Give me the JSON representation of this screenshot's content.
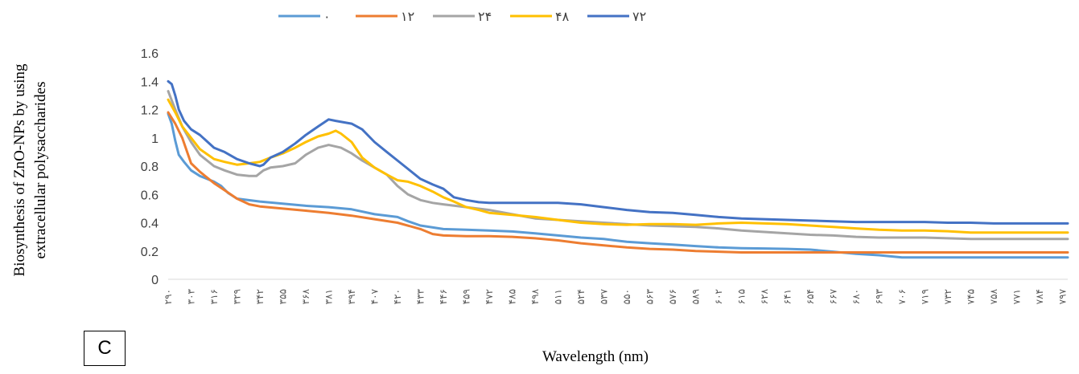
{
  "chart_data": {
    "type": "line",
    "title": "",
    "xlabel": "Wavelength (nm)",
    "ylabel": [
      "Biosynthesis of ZnO-NPs  by using",
      "extracellular polysaccharides"
    ],
    "panel_label": "C",
    "ylim": [
      0,
      1.6
    ],
    "yticks": [
      "0",
      "0.2",
      "0.4",
      "0.6",
      "0.8",
      "1",
      "1.2",
      "1.4",
      "1.6"
    ],
    "grid": false,
    "legend_position": "top",
    "xlim": [
      290,
      800
    ],
    "x_tick_values": [
      290,
      303,
      316,
      329,
      342,
      355,
      368,
      381,
      394,
      407,
      420,
      433,
      446,
      459,
      472,
      485,
      498,
      511,
      524,
      537,
      550,
      563,
      576,
      589,
      602,
      615,
      628,
      641,
      654,
      667,
      680,
      693,
      706,
      719,
      732,
      745,
      758,
      771,
      784,
      797
    ],
    "x_tick_labels": [
      "۲۹۰",
      "۳۰۳",
      "۳۱۶",
      "۳۲۹",
      "۳۴۲",
      "۳۵۵",
      "۳۶۸",
      "۳۸۱",
      "۳۹۴",
      "۴۰۷",
      "۴۲۰",
      "۴۳۳",
      "۴۴۶",
      "۴۵۹",
      "۴۷۲",
      "۴۸۵",
      "۴۹۸",
      "۵۱۱",
      "۵۲۴",
      "۵۳۷",
      "۵۵۰",
      "۵۶۳",
      "۵۷۶",
      "۵۸۹",
      "۶۰۲",
      "۶۱۵",
      "۶۲۸",
      "۶۴۱",
      "۶۵۴",
      "۶۶۷",
      "۶۸۰",
      "۶۹۳",
      "۷۰۶",
      "۷۱۹",
      "۷۳۲",
      "۷۴۵",
      "۷۵۸",
      "۷۷۱",
      "۷۸۴",
      "۷۹۷"
    ],
    "series": [
      {
        "name": "۰",
        "color": "#5B9BD5",
        "points": [
          [
            290,
            1.17
          ],
          [
            292,
            1.1
          ],
          [
            294,
            0.98
          ],
          [
            296,
            0.88
          ],
          [
            299,
            0.83
          ],
          [
            303,
            0.77
          ],
          [
            308,
            0.73
          ],
          [
            316,
            0.69
          ],
          [
            320,
            0.66
          ],
          [
            324,
            0.61
          ],
          [
            329,
            0.57
          ],
          [
            342,
            0.55
          ],
          [
            355,
            0.535
          ],
          [
            368,
            0.52
          ],
          [
            381,
            0.51
          ],
          [
            394,
            0.495
          ],
          [
            407,
            0.46
          ],
          [
            420,
            0.44
          ],
          [
            426,
            0.41
          ],
          [
            433,
            0.38
          ],
          [
            446,
            0.355
          ],
          [
            459,
            0.35
          ],
          [
            472,
            0.345
          ],
          [
            485,
            0.338
          ],
          [
            498,
            0.325
          ],
          [
            511,
            0.31
          ],
          [
            524,
            0.295
          ],
          [
            537,
            0.285
          ],
          [
            550,
            0.265
          ],
          [
            563,
            0.255
          ],
          [
            576,
            0.245
          ],
          [
            589,
            0.235
          ],
          [
            602,
            0.225
          ],
          [
            615,
            0.22
          ],
          [
            628,
            0.218
          ],
          [
            641,
            0.215
          ],
          [
            654,
            0.21
          ],
          [
            667,
            0.195
          ],
          [
            680,
            0.18
          ],
          [
            693,
            0.17
          ],
          [
            706,
            0.155
          ],
          [
            719,
            0.155
          ],
          [
            732,
            0.155
          ],
          [
            745,
            0.155
          ],
          [
            758,
            0.155
          ],
          [
            771,
            0.155
          ],
          [
            784,
            0.155
          ],
          [
            797,
            0.155
          ],
          [
            800,
            0.155
          ]
        ]
      },
      {
        "name": "۱۲",
        "color": "#ED7D31",
        "points": [
          [
            290,
            1.18
          ],
          [
            294,
            1.1
          ],
          [
            298,
            1.0
          ],
          [
            303,
            0.82
          ],
          [
            308,
            0.76
          ],
          [
            316,
            0.68
          ],
          [
            322,
            0.63
          ],
          [
            329,
            0.57
          ],
          [
            336,
            0.53
          ],
          [
            342,
            0.515
          ],
          [
            355,
            0.5
          ],
          [
            368,
            0.485
          ],
          [
            381,
            0.47
          ],
          [
            394,
            0.45
          ],
          [
            407,
            0.425
          ],
          [
            420,
            0.4
          ],
          [
            433,
            0.355
          ],
          [
            440,
            0.32
          ],
          [
            446,
            0.31
          ],
          [
            459,
            0.305
          ],
          [
            472,
            0.305
          ],
          [
            485,
            0.3
          ],
          [
            498,
            0.29
          ],
          [
            511,
            0.275
          ],
          [
            524,
            0.255
          ],
          [
            537,
            0.24
          ],
          [
            550,
            0.225
          ],
          [
            563,
            0.215
          ],
          [
            576,
            0.21
          ],
          [
            589,
            0.2
          ],
          [
            602,
            0.195
          ],
          [
            615,
            0.19
          ],
          [
            628,
            0.19
          ],
          [
            641,
            0.19
          ],
          [
            654,
            0.19
          ],
          [
            667,
            0.19
          ],
          [
            680,
            0.19
          ],
          [
            693,
            0.19
          ],
          [
            706,
            0.19
          ],
          [
            719,
            0.19
          ],
          [
            732,
            0.19
          ],
          [
            745,
            0.19
          ],
          [
            758,
            0.19
          ],
          [
            771,
            0.19
          ],
          [
            784,
            0.19
          ],
          [
            797,
            0.19
          ],
          [
            800,
            0.19
          ]
        ]
      },
      {
        "name": "۲۴",
        "color": "#A5A5A5",
        "points": [
          [
            290,
            1.33
          ],
          [
            294,
            1.2
          ],
          [
            298,
            1.08
          ],
          [
            303,
            0.97
          ],
          [
            308,
            0.88
          ],
          [
            316,
            0.8
          ],
          [
            322,
            0.77
          ],
          [
            329,
            0.74
          ],
          [
            336,
            0.73
          ],
          [
            340,
            0.73
          ],
          [
            344,
            0.77
          ],
          [
            348,
            0.79
          ],
          [
            355,
            0.8
          ],
          [
            362,
            0.82
          ],
          [
            368,
            0.88
          ],
          [
            375,
            0.93
          ],
          [
            381,
            0.95
          ],
          [
            388,
            0.93
          ],
          [
            394,
            0.89
          ],
          [
            400,
            0.84
          ],
          [
            407,
            0.79
          ],
          [
            414,
            0.74
          ],
          [
            420,
            0.66
          ],
          [
            426,
            0.6
          ],
          [
            433,
            0.56
          ],
          [
            440,
            0.54
          ],
          [
            446,
            0.53
          ],
          [
            459,
            0.51
          ],
          [
            472,
            0.49
          ],
          [
            485,
            0.46
          ],
          [
            498,
            0.43
          ],
          [
            511,
            0.42
          ],
          [
            524,
            0.41
          ],
          [
            537,
            0.4
          ],
          [
            550,
            0.39
          ],
          [
            563,
            0.38
          ],
          [
            576,
            0.375
          ],
          [
            589,
            0.37
          ],
          [
            602,
            0.36
          ],
          [
            615,
            0.345
          ],
          [
            628,
            0.335
          ],
          [
            641,
            0.325
          ],
          [
            654,
            0.315
          ],
          [
            667,
            0.31
          ],
          [
            680,
            0.3
          ],
          [
            693,
            0.295
          ],
          [
            706,
            0.295
          ],
          [
            719,
            0.295
          ],
          [
            732,
            0.29
          ],
          [
            745,
            0.285
          ],
          [
            758,
            0.285
          ],
          [
            771,
            0.285
          ],
          [
            784,
            0.285
          ],
          [
            797,
            0.285
          ],
          [
            800,
            0.285
          ]
        ]
      },
      {
        "name": "۴۸",
        "color": "#FFC000",
        "points": [
          [
            290,
            1.27
          ],
          [
            294,
            1.18
          ],
          [
            298,
            1.08
          ],
          [
            303,
            1.0
          ],
          [
            308,
            0.92
          ],
          [
            316,
            0.85
          ],
          [
            322,
            0.83
          ],
          [
            329,
            0.81
          ],
          [
            336,
            0.82
          ],
          [
            342,
            0.83
          ],
          [
            348,
            0.86
          ],
          [
            355,
            0.89
          ],
          [
            362,
            0.93
          ],
          [
            368,
            0.97
          ],
          [
            375,
            1.01
          ],
          [
            381,
            1.03
          ],
          [
            385,
            1.05
          ],
          [
            388,
            1.03
          ],
          [
            394,
            0.97
          ],
          [
            400,
            0.86
          ],
          [
            407,
            0.79
          ],
          [
            414,
            0.74
          ],
          [
            420,
            0.7
          ],
          [
            426,
            0.69
          ],
          [
            433,
            0.66
          ],
          [
            440,
            0.62
          ],
          [
            446,
            0.58
          ],
          [
            452,
            0.55
          ],
          [
            459,
            0.51
          ],
          [
            466,
            0.49
          ],
          [
            472,
            0.47
          ],
          [
            485,
            0.455
          ],
          [
            498,
            0.44
          ],
          [
            511,
            0.42
          ],
          [
            524,
            0.4
          ],
          [
            537,
            0.39
          ],
          [
            550,
            0.385
          ],
          [
            563,
            0.39
          ],
          [
            576,
            0.39
          ],
          [
            589,
            0.385
          ],
          [
            602,
            0.395
          ],
          [
            615,
            0.4
          ],
          [
            628,
            0.395
          ],
          [
            641,
            0.39
          ],
          [
            654,
            0.38
          ],
          [
            667,
            0.37
          ],
          [
            680,
            0.36
          ],
          [
            693,
            0.35
          ],
          [
            706,
            0.345
          ],
          [
            719,
            0.345
          ],
          [
            732,
            0.34
          ],
          [
            745,
            0.33
          ],
          [
            758,
            0.33
          ],
          [
            771,
            0.33
          ],
          [
            784,
            0.33
          ],
          [
            797,
            0.33
          ],
          [
            800,
            0.33
          ]
        ]
      },
      {
        "name": "۷۲",
        "color": "#4472C4",
        "points": [
          [
            290,
            1.4
          ],
          [
            292,
            1.38
          ],
          [
            294,
            1.3
          ],
          [
            296,
            1.2
          ],
          [
            299,
            1.12
          ],
          [
            303,
            1.06
          ],
          [
            308,
            1.02
          ],
          [
            316,
            0.93
          ],
          [
            322,
            0.9
          ],
          [
            329,
            0.85
          ],
          [
            336,
            0.82
          ],
          [
            342,
            0.8
          ],
          [
            344,
            0.81
          ],
          [
            348,
            0.86
          ],
          [
            355,
            0.9
          ],
          [
            362,
            0.96
          ],
          [
            368,
            1.02
          ],
          [
            375,
            1.08
          ],
          [
            381,
            1.13
          ],
          [
            385,
            1.12
          ],
          [
            394,
            1.1
          ],
          [
            400,
            1.06
          ],
          [
            407,
            0.97
          ],
          [
            414,
            0.9
          ],
          [
            420,
            0.84
          ],
          [
            426,
            0.78
          ],
          [
            433,
            0.71
          ],
          [
            440,
            0.67
          ],
          [
            446,
            0.64
          ],
          [
            452,
            0.58
          ],
          [
            459,
            0.56
          ],
          [
            466,
            0.545
          ],
          [
            472,
            0.54
          ],
          [
            485,
            0.54
          ],
          [
            498,
            0.54
          ],
          [
            511,
            0.54
          ],
          [
            524,
            0.53
          ],
          [
            537,
            0.51
          ],
          [
            550,
            0.49
          ],
          [
            563,
            0.475
          ],
          [
            576,
            0.47
          ],
          [
            589,
            0.455
          ],
          [
            602,
            0.44
          ],
          [
            615,
            0.43
          ],
          [
            628,
            0.425
          ],
          [
            641,
            0.42
          ],
          [
            654,
            0.415
          ],
          [
            667,
            0.41
          ],
          [
            680,
            0.405
          ],
          [
            693,
            0.405
          ],
          [
            706,
            0.405
          ],
          [
            719,
            0.405
          ],
          [
            732,
            0.4
          ],
          [
            745,
            0.4
          ],
          [
            758,
            0.395
          ],
          [
            771,
            0.395
          ],
          [
            784,
            0.395
          ],
          [
            797,
            0.395
          ],
          [
            800,
            0.395
          ]
        ]
      }
    ]
  }
}
